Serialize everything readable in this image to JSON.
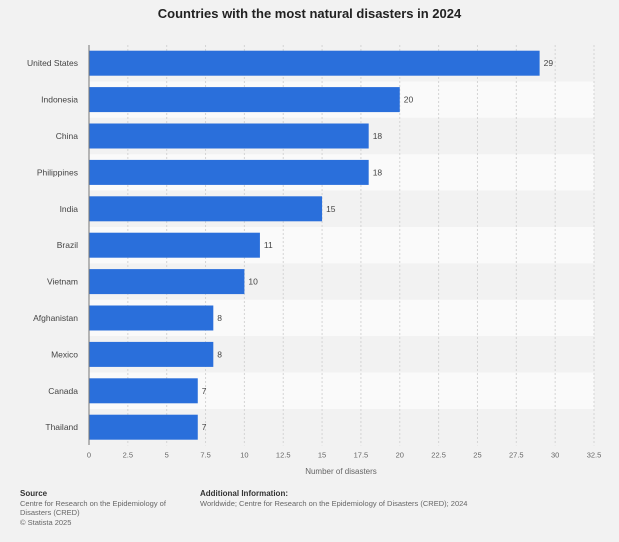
{
  "chart_data": {
    "type": "bar",
    "orientation": "horizontal",
    "title": "Countries with the most natural disasters in 2024",
    "xlabel": "Number of disasters",
    "ylabel": "",
    "categories": [
      "United States",
      "Indonesia",
      "China",
      "Philippines",
      "India",
      "Brazil",
      "Vietnam",
      "Afghanistan",
      "Mexico",
      "Canada",
      "Thailand"
    ],
    "values": [
      29,
      20,
      18,
      18,
      15,
      11,
      10,
      8,
      8,
      7,
      7
    ],
    "xlim": [
      0,
      32.5
    ],
    "xticks": [
      "0",
      "2.5",
      "5",
      "7.5",
      "10",
      "12.5",
      "15",
      "17.5",
      "20",
      "22.5",
      "25",
      "27.5",
      "30",
      "32.5"
    ],
    "bar_color": "#2a6fdb"
  },
  "footer": {
    "source_heading": "Source",
    "source_text": "Centre for Research on the Epidemiology of Disasters (CRED)",
    "copyright": "© Statista 2025",
    "additional_heading": "Additional Information:",
    "additional_text": "Worldwide; Centre for Research on the Epidemiology of Disasters (CRED); 2024"
  }
}
